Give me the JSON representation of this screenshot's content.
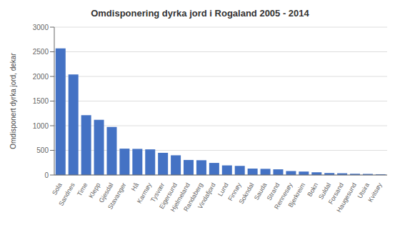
{
  "chart_data": {
    "type": "bar",
    "title": "Omdisponering dyrka jord i Rogaland 2005 - 2014",
    "ylabel": "Omdisponert dyrka jord, dekar",
    "categories": [
      "Sola",
      "Sandnes",
      "Time",
      "Klepp",
      "Gjesdal",
      "Stavanger",
      "Hå",
      "Karmøy",
      "Tysvær",
      "Eigersund",
      "Hjelmeland",
      "Randaberg",
      "Vindafjord",
      "Lund",
      "Finnøy",
      "Sokndal",
      "Sauda",
      "Strand",
      "Rennesøy",
      "Bjerkreim",
      "Bokn",
      "Suldal",
      "Forsand",
      "Haugesund",
      "Utsira",
      "Kvitsøy"
    ],
    "values": [
      2570,
      2040,
      1215,
      1120,
      975,
      535,
      530,
      520,
      450,
      400,
      305,
      300,
      245,
      195,
      185,
      130,
      125,
      115,
      80,
      70,
      55,
      40,
      35,
      25,
      20,
      15
    ],
    "color": "#4472C4",
    "ylim": [
      0,
      3000
    ],
    "yticks": [
      0,
      500,
      1000,
      1500,
      2000,
      2500,
      3000
    ],
    "grid": true
  }
}
